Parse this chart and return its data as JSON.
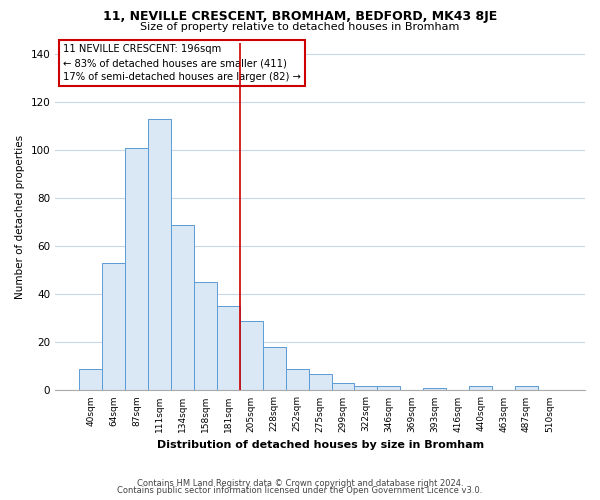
{
  "title": "11, NEVILLE CRESCENT, BROMHAM, BEDFORD, MK43 8JE",
  "subtitle": "Size of property relative to detached houses in Bromham",
  "xlabel": "Distribution of detached houses by size in Bromham",
  "ylabel": "Number of detached properties",
  "footer_line1": "Contains HM Land Registry data © Crown copyright and database right 2024.",
  "footer_line2": "Contains public sector information licensed under the Open Government Licence v3.0.",
  "bar_labels": [
    "40sqm",
    "64sqm",
    "87sqm",
    "111sqm",
    "134sqm",
    "158sqm",
    "181sqm",
    "205sqm",
    "228sqm",
    "252sqm",
    "275sqm",
    "299sqm",
    "322sqm",
    "346sqm",
    "369sqm",
    "393sqm",
    "416sqm",
    "440sqm",
    "463sqm",
    "487sqm",
    "510sqm"
  ],
  "bar_values": [
    9,
    53,
    101,
    113,
    69,
    45,
    35,
    29,
    18,
    9,
    7,
    3,
    2,
    2,
    0,
    1,
    0,
    2,
    0,
    2,
    0
  ],
  "bar_color": "#dae8f5",
  "bar_edge_color": "#5b9bd5",
  "vline_color": "#cc0000",
  "annotation_title": "11 NEVILLE CRESCENT: 196sqm",
  "annotation_line1": "← 83% of detached houses are smaller (411)",
  "annotation_line2": "17% of semi-detached houses are larger (82) →",
  "annotation_box_color": "#ffffff",
  "annotation_box_edge_color": "#cc0000",
  "ylim": [
    0,
    145
  ],
  "yticks": [
    0,
    20,
    40,
    60,
    80,
    100,
    120,
    140
  ],
  "background_color": "#ffffff",
  "grid_color": "#c8d8e8"
}
